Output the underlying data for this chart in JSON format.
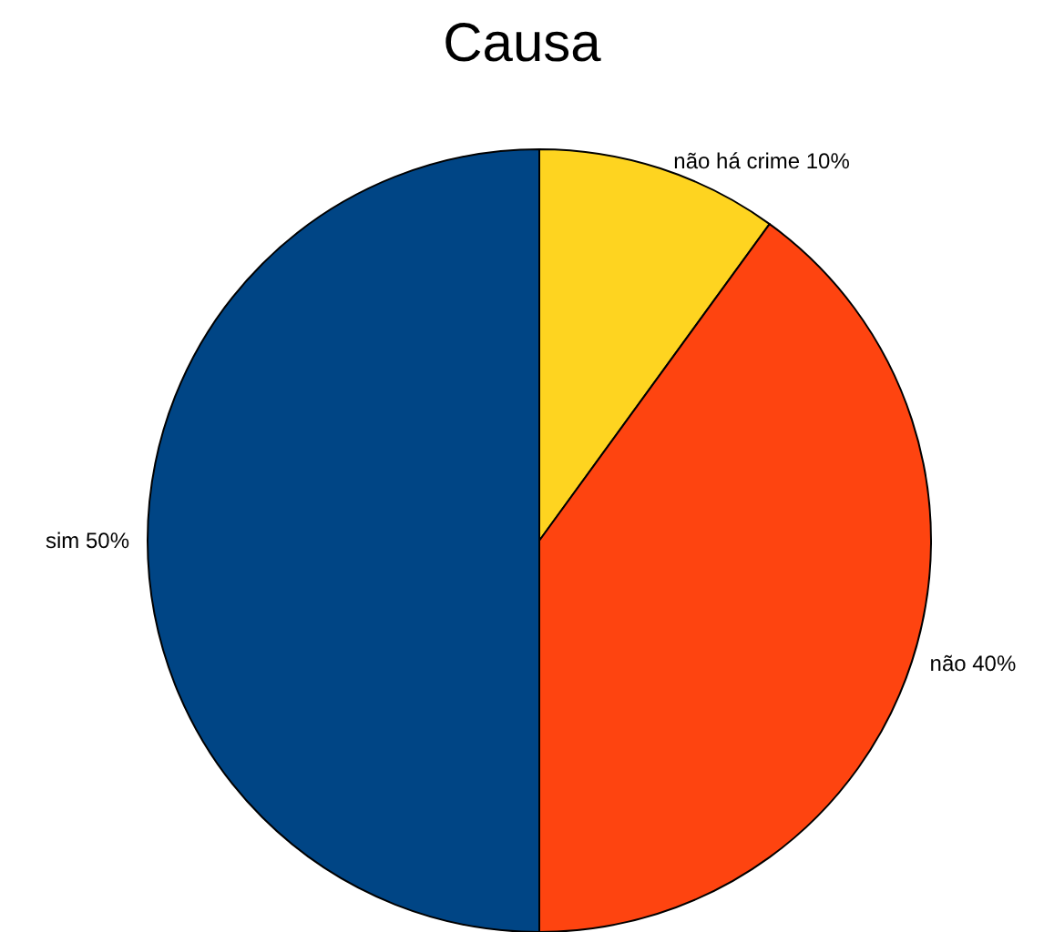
{
  "chart_data": {
    "type": "pie",
    "title": "Causa",
    "categories": [
      "não há crime",
      "não",
      "sim"
    ],
    "values": [
      10,
      40,
      50
    ],
    "value_labels": [
      "10%",
      "40%",
      "50%"
    ],
    "colors": [
      "#fed420",
      "#fe4410",
      "#004585"
    ]
  }
}
